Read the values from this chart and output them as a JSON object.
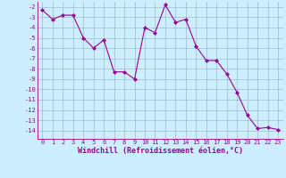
{
  "x": [
    0,
    1,
    2,
    3,
    4,
    5,
    6,
    7,
    8,
    9,
    10,
    11,
    12,
    13,
    14,
    15,
    16,
    17,
    18,
    19,
    20,
    21,
    22,
    23
  ],
  "y": [
    -2.3,
    -3.2,
    -2.8,
    -2.8,
    -5.0,
    -6.0,
    -5.2,
    -8.3,
    -8.3,
    -9.0,
    -4.0,
    -4.5,
    -1.8,
    -3.5,
    -3.2,
    -5.8,
    -7.2,
    -7.2,
    -8.5,
    -10.3,
    -12.5,
    -13.8,
    -13.7,
    -13.9
  ],
  "xlim": [
    -0.5,
    23.5
  ],
  "ylim": [
    -14.8,
    -1.5
  ],
  "yticks": [
    -2,
    -3,
    -4,
    -5,
    -6,
    -7,
    -8,
    -9,
    -10,
    -11,
    -12,
    -13,
    -14
  ],
  "xticks": [
    0,
    1,
    2,
    3,
    4,
    5,
    6,
    7,
    8,
    9,
    10,
    11,
    12,
    13,
    14,
    15,
    16,
    17,
    18,
    19,
    20,
    21,
    22,
    23
  ],
  "xlabel": "Windchill (Refroidissement éolien,°C)",
  "line_color": "#990099",
  "marker": "D",
  "marker_size": 2,
  "bg_color": "#cceeff",
  "grid_color": "#99aacc",
  "tick_fontsize": 5,
  "xlabel_fontsize": 6
}
